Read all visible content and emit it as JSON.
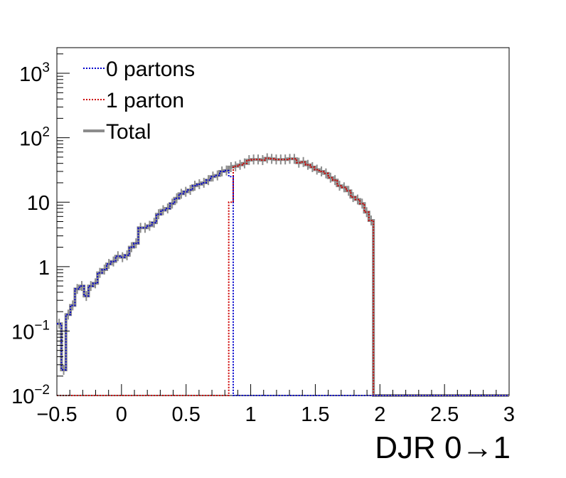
{
  "chart_data": {
    "type": "line",
    "title": "",
    "xlabel": "DJR 0→1",
    "ylabel": "",
    "xlim": [
      -0.5,
      3
    ],
    "ylim": [
      0.01,
      2500
    ],
    "yscale": "log",
    "grid": false,
    "legend_position": "top-left",
    "x_ticks": [
      -0.5,
      0,
      0.5,
      1,
      1.5,
      2,
      2.5,
      3
    ],
    "x_tick_labels": [
      "−0.5",
      "0",
      "0.5",
      "1",
      "1.5",
      "2",
      "2.5",
      "3"
    ],
    "y_ticks": [
      {
        "value": 0.01,
        "base": "10",
        "exp": "−2"
      },
      {
        "value": 0.1,
        "base": "10",
        "exp": "−1"
      },
      {
        "value": 1,
        "base": "1",
        "exp": ""
      },
      {
        "value": 10,
        "base": "10",
        "exp": ""
      },
      {
        "value": 100,
        "base": "10",
        "exp": "2"
      },
      {
        "value": 1000,
        "base": "10",
        "exp": "3"
      }
    ],
    "bin_edges_start": -0.5,
    "bin_width": 0.035,
    "series": [
      {
        "name": "0 partons",
        "color": "#0000cc",
        "style": "dotted",
        "values": [
          0.13,
          0.025,
          0.18,
          0.25,
          0.45,
          0.5,
          0.35,
          0.5,
          0.55,
          0.8,
          0.9,
          1.1,
          1.2,
          1.45,
          1.4,
          1.5,
          2.0,
          2.3,
          4.0,
          4.0,
          4.3,
          4.8,
          6.5,
          7.5,
          8.0,
          9.5,
          11.5,
          13.5,
          14.5,
          15.5,
          18.0,
          19.0,
          20.0,
          22.0,
          25.0,
          26.0,
          30.0,
          31.0,
          25.0,
          0.0,
          0,
          0,
          0,
          0,
          0,
          0,
          0,
          0,
          0,
          0,
          0,
          0,
          0,
          0,
          0,
          0,
          0,
          0,
          0,
          0,
          0,
          0,
          0,
          0,
          0,
          0,
          0,
          0,
          0,
          0,
          0,
          0,
          0,
          0,
          0,
          0,
          0,
          0,
          0,
          0,
          0,
          0,
          0,
          0,
          0,
          0,
          0,
          0,
          0,
          0,
          0,
          0,
          0,
          0,
          0,
          0,
          0,
          0,
          0,
          0
        ]
      },
      {
        "name": "1 parton",
        "color": "#cc0000",
        "style": "dotted",
        "values": [
          0,
          0,
          0,
          0,
          0,
          0,
          0,
          0,
          0,
          0,
          0,
          0,
          0,
          0,
          0,
          0,
          0,
          0,
          0,
          0,
          0,
          0,
          0,
          0,
          0,
          0,
          0,
          0,
          0,
          0,
          0,
          0,
          0,
          0,
          0,
          0,
          0,
          0,
          10.0,
          36.0,
          38.0,
          40.0,
          45.0,
          46.0,
          46.0,
          45.0,
          48.0,
          47.0,
          46.0,
          46.0,
          46.0,
          47.0,
          47.0,
          41.0,
          42.0,
          38.0,
          35.0,
          32.0,
          30.0,
          28.0,
          24.0,
          22.0,
          18.0,
          17.0,
          15.0,
          12.0,
          11.0,
          9.5,
          7.0,
          5.2,
          0,
          0,
          0,
          0,
          0,
          0,
          0,
          0,
          0,
          0,
          0,
          0,
          0,
          0,
          0,
          0,
          0,
          0,
          0,
          0,
          0,
          0,
          0,
          0,
          0,
          0,
          0,
          0,
          0,
          0
        ]
      },
      {
        "name": "Total",
        "color": "#8c8c8c",
        "style": "solid",
        "values": [
          0.13,
          0.025,
          0.18,
          0.25,
          0.45,
          0.5,
          0.35,
          0.5,
          0.55,
          0.8,
          0.9,
          1.1,
          1.2,
          1.45,
          1.4,
          1.5,
          2.0,
          2.3,
          4.0,
          4.0,
          4.3,
          4.8,
          6.5,
          7.5,
          8.0,
          9.5,
          11.5,
          13.5,
          14.5,
          15.5,
          18.0,
          19.0,
          20.0,
          22.0,
          25.0,
          26.0,
          30.0,
          31.0,
          35.0,
          36.0,
          38.0,
          40.0,
          45.0,
          46.0,
          46.0,
          45.0,
          48.0,
          47.0,
          46.0,
          46.0,
          46.0,
          47.0,
          47.0,
          41.0,
          42.0,
          38.0,
          35.0,
          32.0,
          30.0,
          28.0,
          24.0,
          22.0,
          18.0,
          17.0,
          15.0,
          12.0,
          11.0,
          9.5,
          7.0,
          5.2,
          0,
          0,
          0,
          0,
          0,
          0,
          0,
          0,
          0,
          0,
          0,
          0,
          0,
          0,
          0,
          0,
          0,
          0,
          0,
          0,
          0,
          0,
          0,
          0,
          0,
          0,
          0,
          0,
          0,
          0
        ]
      }
    ]
  }
}
